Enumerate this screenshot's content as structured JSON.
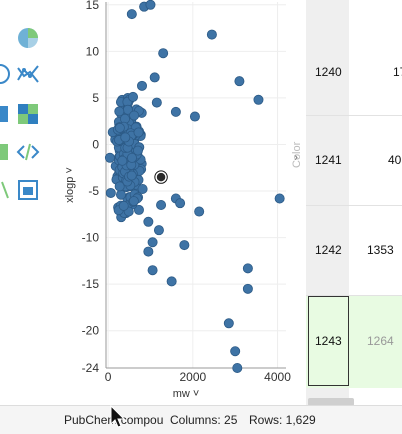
{
  "status_bar": {
    "table_name": "PubChem compou",
    "columns": "Columns: 25",
    "rows": "Rows: 1,629"
  },
  "plot": {
    "color_label": "Color",
    "x_selector": "mw",
    "y_selector": "xlogp",
    "point_color": "#3e73a5",
    "chevron_icon": "chevron-down-icon"
  },
  "grid": {
    "rows": [
      {
        "id": "1240",
        "value": "17"
      },
      {
        "id": "1241",
        "value": "40"
      },
      {
        "id": "1242",
        "value": "1353"
      },
      {
        "id": "1243",
        "value": "1264"
      }
    ],
    "selected_row_color": "#e8fbe2"
  },
  "chart_data": {
    "type": "scatter",
    "xlabel": "mw",
    "ylabel": "xlogp",
    "xlim": [
      -50,
      4200
    ],
    "ylim": [
      -24,
      15.3
    ],
    "x_ticks": [
      "0",
      "2000",
      "4000"
    ],
    "y_ticks": [
      "15",
      "10",
      "5",
      "0",
      "-5",
      "-10",
      "-15",
      "-20",
      "-24"
    ],
    "highlighted_point": [
      1250,
      -3.5
    ],
    "outliers": [
      [
        560,
        14
      ],
      [
        850,
        14.8
      ],
      [
        1000,
        15
      ],
      [
        2450,
        11.8
      ],
      [
        3100,
        6.8
      ],
      [
        3550,
        4.8
      ],
      [
        1600,
        3.5
      ],
      [
        2050,
        3
      ],
      [
        4050,
        -5.8
      ],
      [
        2150,
        -7.2
      ],
      [
        1800,
        -10.8
      ],
      [
        1050,
        -10.5
      ],
      [
        1500,
        -14.7
      ],
      [
        3300,
        -13.3
      ],
      [
        3300,
        -15.5
      ],
      [
        2850,
        -19.2
      ],
      [
        3000,
        -22.2
      ],
      [
        3050,
        -24
      ],
      [
        950,
        -11.5
      ],
      [
        1200,
        -9.2
      ],
      [
        1600,
        -5.8
      ],
      [
        1700,
        -6.3
      ],
      [
        1250,
        -6.5
      ],
      [
        1050,
        -13.5
      ],
      [
        950,
        -8.3
      ],
      [
        800,
        6.3
      ],
      [
        1100,
        7.2
      ],
      [
        1150,
        4.5
      ],
      [
        1300,
        9.8
      ]
    ],
    "cluster": {
      "x_range": [
        0,
        1100
      ],
      "y_range": [
        -8,
        11
      ],
      "count": 240
    },
    "grid": true
  }
}
